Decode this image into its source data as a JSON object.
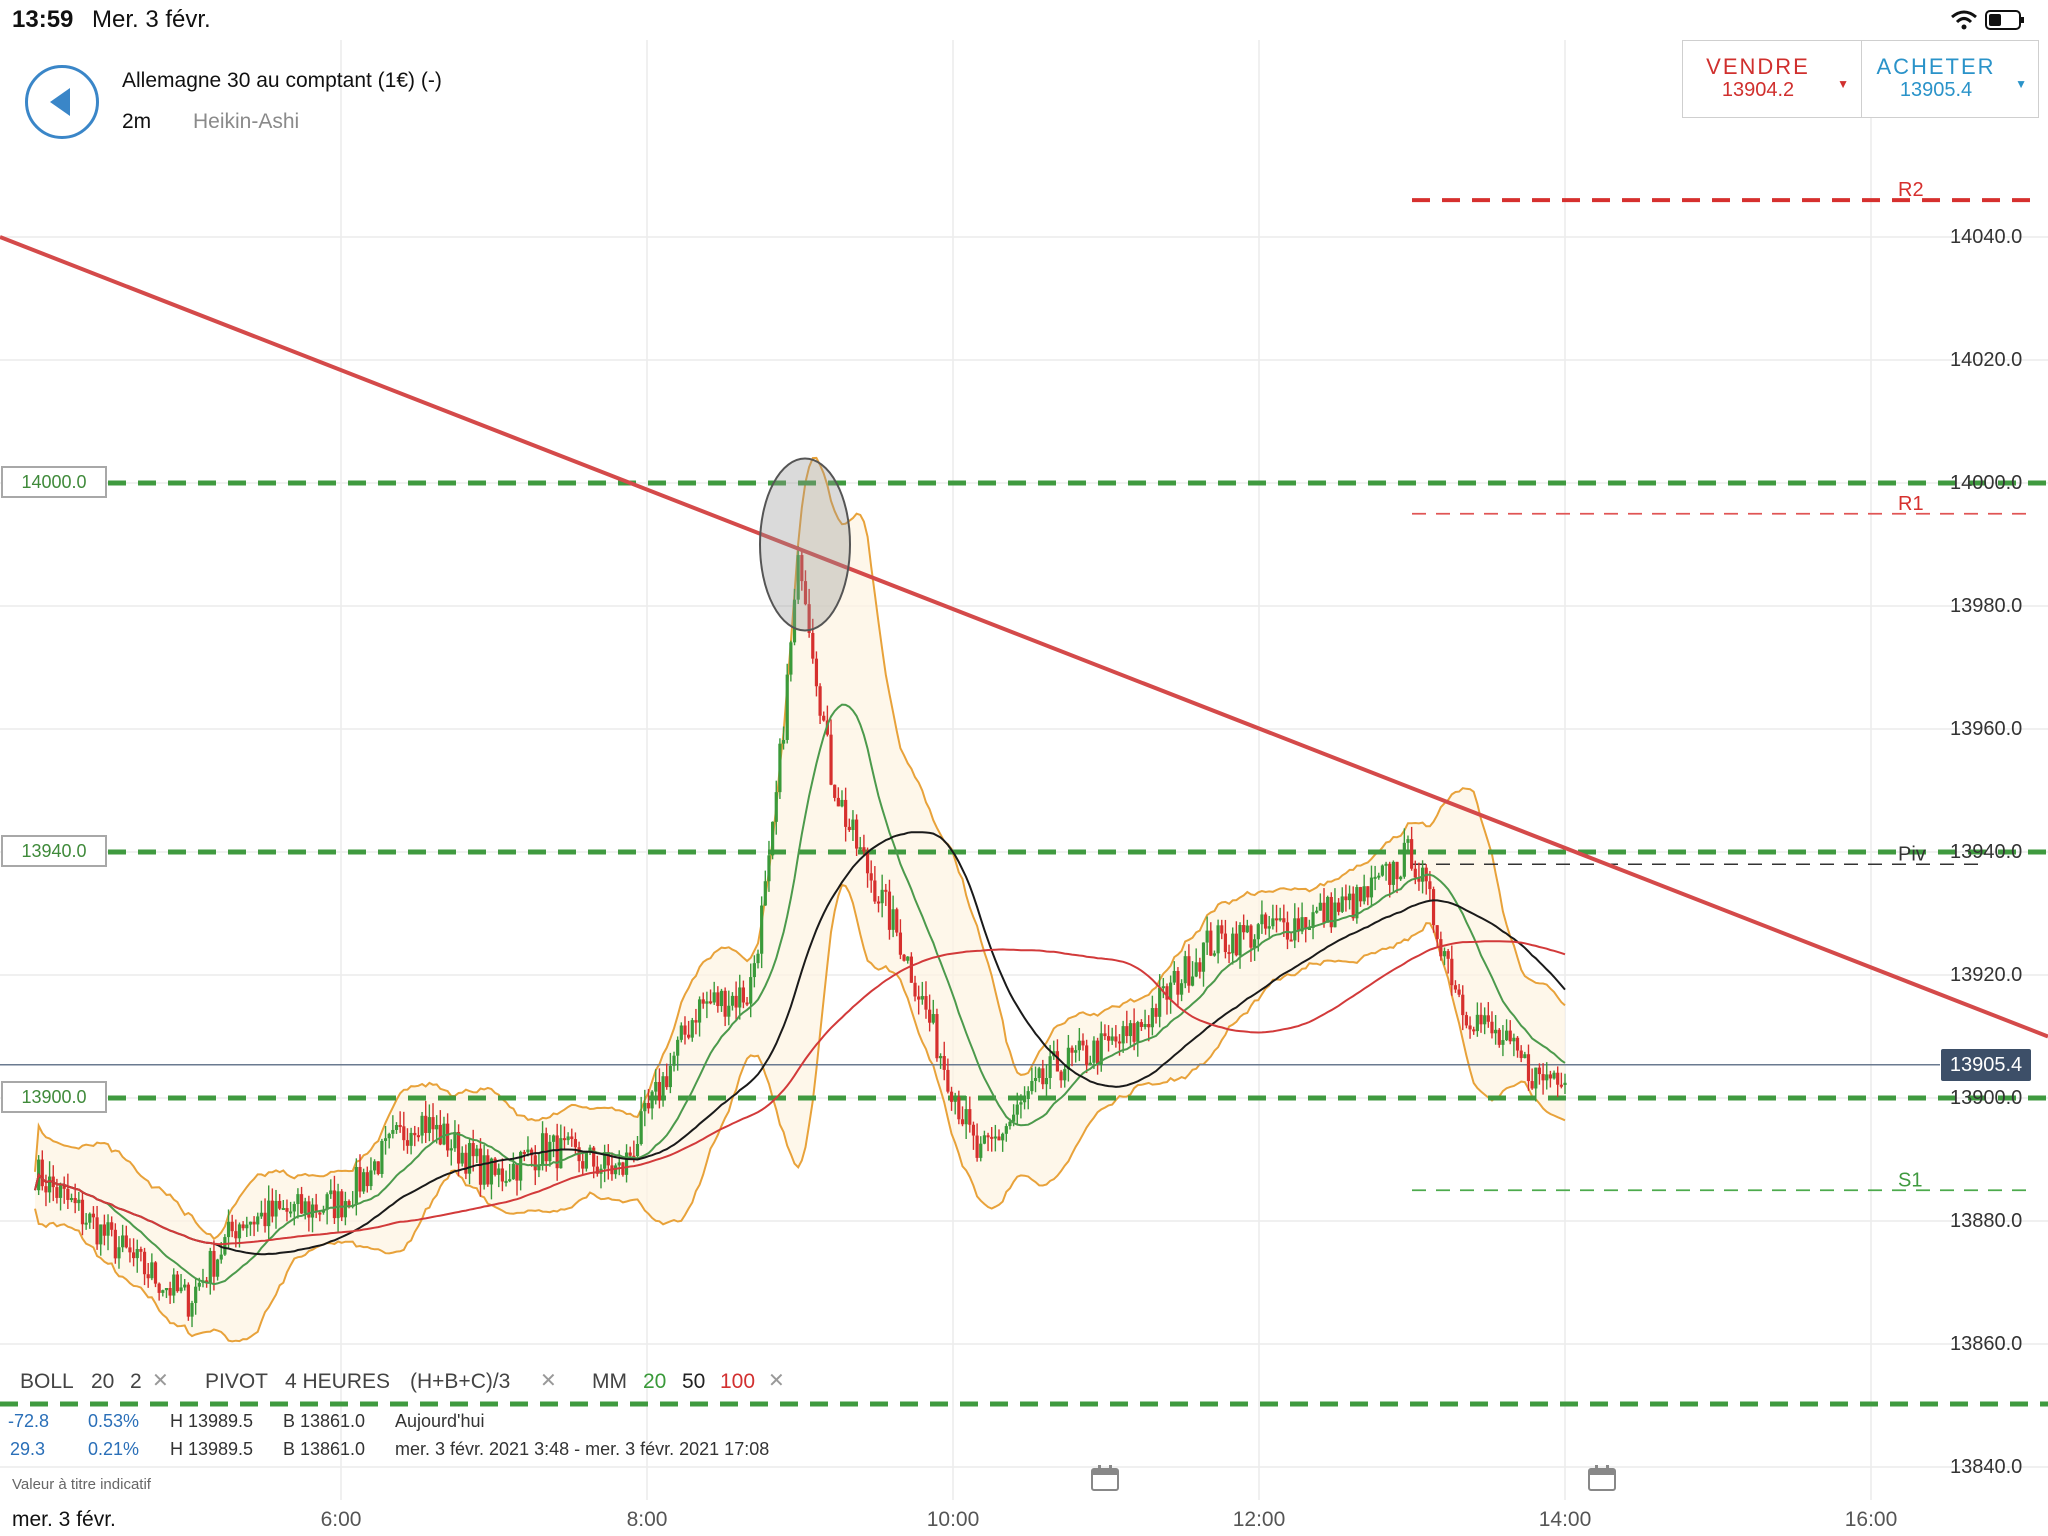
{
  "status_bar": {
    "time": "13:59",
    "date": "Mer. 3 févr."
  },
  "header": {
    "instrument": "Allemagne 30 au comptant (1€) (-)",
    "timeframe": "2m",
    "chart_type": "Heikin-Ashi"
  },
  "trade": {
    "sell_label": "VENDRE",
    "sell_price": "13904.2",
    "buy_label": "ACHETER",
    "buy_price": "13905.4"
  },
  "level_tags": {
    "t14000": "14000.0",
    "t13940": "13940.0",
    "t13900": "13900.0"
  },
  "pivots": {
    "r2": "R2",
    "r1": "R1",
    "piv": "Piv",
    "s1": "S1"
  },
  "current_price": "13905.4",
  "indicators": {
    "boll_name": "BOLL",
    "boll_period": "20",
    "boll_dev": "2",
    "pivot_name": "PIVOT",
    "pivot_period": "4 HEURES",
    "pivot_formula": "(H+B+C)/3",
    "ma_name": "MM",
    "ma1": "20",
    "ma2": "50",
    "ma3": "100"
  },
  "stats": [
    {
      "change": "-72.8",
      "pct": "0.53%",
      "high": "H 13989.5",
      "low": "B 13861.0",
      "period": "Aujourd'hui"
    },
    {
      "change": "29.3",
      "pct": "0.21%",
      "high": "H 13989.5",
      "low": "B 13861.0",
      "period": "mer. 3 févr. 2021 3:48 - mer. 3 févr. 2021 17:08"
    }
  ],
  "disclaimer": "Valeur à titre indicatif",
  "x_axis": {
    "date": "mer. 3 févr.",
    "ticks": [
      "6:00",
      "8:00",
      "10:00",
      "12:00",
      "14:00",
      "16:00"
    ]
  },
  "y_axis": {
    "ticks": [
      "14040.0",
      "14020.0",
      "14000.0",
      "13980.0",
      "13960.0",
      "13940.0",
      "13920.0",
      "13900.0",
      "13880.0",
      "13860.0",
      "13840.0"
    ]
  },
  "colors": {
    "up": "#3a9a3a",
    "down": "#d6302e",
    "trend": "#d44a4a",
    "band": "#e8a23a",
    "level": "#3f9a3f"
  },
  "chart_data": {
    "type": "candlestick",
    "x_range": [
      "4:00",
      "16:00"
    ],
    "ylim": [
      13840,
      14060
    ],
    "key_levels": [
      14000.0,
      13940.0,
      13900.0
    ],
    "pivots": {
      "R2": 14046,
      "R1": 13995,
      "Piv": 13938,
      "S1": 13885
    },
    "trendline": [
      {
        "time": "4:00",
        "value": 14040
      },
      {
        "time": "16:00",
        "value": 13910
      }
    ],
    "highlight": {
      "time": "9:00",
      "value": 13990
    },
    "last_price": 13905.4,
    "high": 13989.5,
    "low": 13861.0,
    "approx_closes": [
      {
        "time": "4:00",
        "value": 13888
      },
      {
        "time": "4:40",
        "value": 13873
      },
      {
        "time": "5:00",
        "value": 13867
      },
      {
        "time": "5:20",
        "value": 13880
      },
      {
        "time": "6:00",
        "value": 13883
      },
      {
        "time": "6:30",
        "value": 13897
      },
      {
        "time": "7:00",
        "value": 13887
      },
      {
        "time": "7:20",
        "value": 13892
      },
      {
        "time": "7:50",
        "value": 13888
      },
      {
        "time": "8:20",
        "value": 13915
      },
      {
        "time": "8:40",
        "value": 13917
      },
      {
        "time": "9:00",
        "value": 13968
      },
      {
        "time": "9:20",
        "value": 13943
      },
      {
        "time": "9:40",
        "value": 13925
      },
      {
        "time": "10:10",
        "value": 13890
      },
      {
        "time": "10:40",
        "value": 13905
      },
      {
        "time": "11:10",
        "value": 13910
      },
      {
        "time": "11:40",
        "value": 13925
      },
      {
        "time": "12:10",
        "value": 13928
      },
      {
        "time": "12:40",
        "value": 13932
      },
      {
        "time": "13:00",
        "value": 13940
      },
      {
        "time": "13:20",
        "value": 13915
      },
      {
        "time": "13:50",
        "value": 13903
      },
      {
        "time": "14:00",
        "value": 13905
      }
    ]
  }
}
